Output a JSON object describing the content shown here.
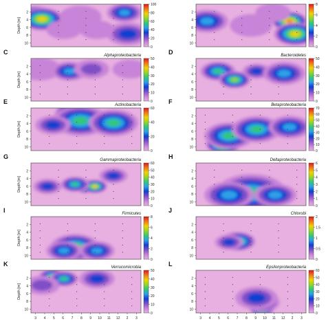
{
  "chart_data": [
    {
      "type": "heatmap",
      "letter": "",
      "title": "",
      "ylabel": "Depth [m]",
      "colorbar_ticks": [
        0,
        20,
        40,
        60,
        80,
        100
      ],
      "hotspots": [
        {
          "x": 0.05,
          "y": 0.25,
          "v": 0.95,
          "r": 0.09
        },
        {
          "x": 0.1,
          "y": 0.35,
          "v": 0.75,
          "r": 0.12
        },
        {
          "x": 0.3,
          "y": 0.6,
          "v": 0.05,
          "r": 0.1
        },
        {
          "x": 0.45,
          "y": 0.3,
          "v": 0.1,
          "r": 0.12
        },
        {
          "x": 0.6,
          "y": 0.6,
          "v": 0.15,
          "r": 0.1
        },
        {
          "x": 0.85,
          "y": 0.2,
          "v": 0.45,
          "r": 0.1
        },
        {
          "x": 0.88,
          "y": 0.7,
          "v": 0.35,
          "r": 0.12
        }
      ]
    },
    {
      "type": "heatmap",
      "letter": "",
      "title": "",
      "ylabel": "",
      "colorbar_ticks": [
        0,
        2,
        4,
        6,
        8
      ],
      "hotspots": [
        {
          "x": 0.85,
          "y": 0.4,
          "v": 0.9,
          "r": 0.1
        },
        {
          "x": 0.9,
          "y": 0.7,
          "v": 0.75,
          "r": 0.12
        },
        {
          "x": 0.1,
          "y": 0.4,
          "v": 0.45,
          "r": 0.12
        },
        {
          "x": 0.5,
          "y": 0.5,
          "v": 0.15,
          "r": 0.12
        },
        {
          "x": 0.7,
          "y": 0.2,
          "v": 0.15,
          "r": 0.1
        }
      ]
    },
    {
      "type": "heatmap",
      "letter": "C",
      "title": "Alphaproteobacteria",
      "ylabel": "Depth [m]",
      "colorbar_ticks": [
        0,
        10,
        20,
        30,
        40,
        50
      ],
      "hotspots": [
        {
          "x": 0.08,
          "y": 0.25,
          "v": 0.15,
          "r": 0.12
        },
        {
          "x": 0.35,
          "y": 0.3,
          "v": 0.4,
          "r": 0.1
        },
        {
          "x": 0.55,
          "y": 0.25,
          "v": 0.25,
          "r": 0.1
        },
        {
          "x": 0.9,
          "y": 0.25,
          "v": 0.1,
          "r": 0.1
        }
      ]
    },
    {
      "type": "heatmap",
      "letter": "D",
      "title": "Bacteroidetes",
      "ylabel": "",
      "colorbar_ticks": [
        0,
        10,
        20,
        30,
        40,
        50
      ],
      "hotspots": [
        {
          "x": 0.2,
          "y": 0.3,
          "v": 0.5,
          "r": 0.1
        },
        {
          "x": 0.35,
          "y": 0.5,
          "v": 0.7,
          "r": 0.09
        },
        {
          "x": 0.55,
          "y": 0.3,
          "v": 0.35,
          "r": 0.08
        },
        {
          "x": 0.8,
          "y": 0.35,
          "v": 0.45,
          "r": 0.12
        }
      ]
    },
    {
      "type": "heatmap",
      "letter": "E",
      "title": "Actinobacteria",
      "ylabel": "Depth [m]",
      "colorbar_ticks": [
        0,
        20,
        40,
        60
      ],
      "hotspots": [
        {
          "x": 0.38,
          "y": 0.12,
          "v": 0.95,
          "r": 0.1
        },
        {
          "x": 0.45,
          "y": 0.3,
          "v": 0.6,
          "r": 0.16
        },
        {
          "x": 0.75,
          "y": 0.35,
          "v": 0.5,
          "r": 0.14
        },
        {
          "x": 0.2,
          "y": 0.4,
          "v": 0.3,
          "r": 0.1
        }
      ]
    },
    {
      "type": "heatmap",
      "letter": "F",
      "title": "Betaproteobacteria",
      "ylabel": "",
      "colorbar_ticks": [
        0,
        10,
        20,
        30,
        40,
        50,
        60,
        70
      ],
      "hotspots": [
        {
          "x": 0.25,
          "y": 0.85,
          "v": 0.95,
          "r": 0.1
        },
        {
          "x": 0.3,
          "y": 0.65,
          "v": 0.6,
          "r": 0.14
        },
        {
          "x": 0.55,
          "y": 0.5,
          "v": 0.55,
          "r": 0.14
        },
        {
          "x": 0.85,
          "y": 0.45,
          "v": 0.45,
          "r": 0.12
        }
      ]
    },
    {
      "type": "heatmap",
      "letter": "G",
      "title": "Gammaproteobacteria",
      "ylabel": "Depth [m]",
      "colorbar_ticks": [
        0,
        10,
        20,
        30,
        40,
        50,
        60
      ],
      "hotspots": [
        {
          "x": 0.5,
          "y": 0.55,
          "v": 0.95,
          "r": 0.07
        },
        {
          "x": 0.58,
          "y": 0.55,
          "v": 0.8,
          "r": 0.07
        },
        {
          "x": 0.4,
          "y": 0.5,
          "v": 0.5,
          "r": 0.08
        },
        {
          "x": 0.15,
          "y": 0.55,
          "v": 0.3,
          "r": 0.08
        },
        {
          "x": 0.75,
          "y": 0.3,
          "v": 0.35,
          "r": 0.08
        }
      ]
    },
    {
      "type": "heatmap",
      "letter": "H",
      "title": "Deltaproteobacteria",
      "ylabel": "",
      "colorbar_ticks": [
        0,
        1,
        2,
        3,
        4,
        5,
        6
      ],
      "hotspots": [
        {
          "x": 0.55,
          "y": 0.85,
          "v": 0.95,
          "r": 0.09
        },
        {
          "x": 0.5,
          "y": 0.7,
          "v": 0.6,
          "r": 0.2
        },
        {
          "x": 0.3,
          "y": 0.75,
          "v": 0.4,
          "r": 0.14
        },
        {
          "x": 0.72,
          "y": 0.75,
          "v": 0.4,
          "r": 0.12
        }
      ]
    },
    {
      "type": "heatmap",
      "letter": "I",
      "title": "Firmicutes",
      "ylabel": "Depth [m]",
      "colorbar_ticks": [
        0,
        2,
        4,
        6,
        8
      ],
      "hotspots": [
        {
          "x": 0.45,
          "y": 0.75,
          "v": 0.95,
          "r": 0.08
        },
        {
          "x": 0.4,
          "y": 0.72,
          "v": 0.7,
          "r": 0.14
        },
        {
          "x": 0.3,
          "y": 0.8,
          "v": 0.4,
          "r": 0.1
        },
        {
          "x": 0.6,
          "y": 0.8,
          "v": 0.4,
          "r": 0.1
        }
      ]
    },
    {
      "type": "heatmap",
      "letter": "J",
      "title": "Chlorobi",
      "ylabel": "",
      "colorbar_ticks": [
        0,
        0.5,
        1,
        1.5,
        2
      ],
      "hotspots": [
        {
          "x": 0.37,
          "y": 0.55,
          "v": 0.95,
          "r": 0.07
        },
        {
          "x": 0.38,
          "y": 0.58,
          "v": 0.65,
          "r": 0.1
        },
        {
          "x": 0.3,
          "y": 0.6,
          "v": 0.3,
          "r": 0.08
        }
      ]
    },
    {
      "type": "heatmap",
      "letter": "K",
      "title": "Verrucomicrobia",
      "ylabel": "Depth [m]",
      "colorbar_ticks": [
        0,
        10,
        20,
        30,
        40,
        50
      ],
      "hotspots": [
        {
          "x": 0.2,
          "y": 0.15,
          "v": 0.65,
          "r": 0.08
        },
        {
          "x": 0.3,
          "y": 0.2,
          "v": 0.5,
          "r": 0.08
        },
        {
          "x": 0.6,
          "y": 0.2,
          "v": 0.3,
          "r": 0.1
        },
        {
          "x": 0.1,
          "y": 0.35,
          "v": 0.25,
          "r": 0.1
        }
      ]
    },
    {
      "type": "heatmap",
      "letter": "L",
      "title": "Epsilonproteobacteria",
      "ylabel": "",
      "colorbar_ticks": [
        0,
        10,
        20,
        30,
        40,
        50,
        60
      ],
      "hotspots": [
        {
          "x": 0.6,
          "y": 0.9,
          "v": 0.95,
          "r": 0.07
        },
        {
          "x": 0.6,
          "y": 0.75,
          "v": 0.6,
          "r": 0.1
        },
        {
          "x": 0.55,
          "y": 0.65,
          "v": 0.3,
          "r": 0.12
        }
      ]
    }
  ],
  "axes": {
    "y_ticks": [
      2,
      4,
      6,
      8,
      10
    ],
    "x_ticks": [
      "3",
      "4",
      "5",
      "6",
      "7",
      "8",
      "9",
      "10",
      "11",
      "12",
      "2",
      "3"
    ]
  },
  "colors": {
    "scale": [
      "#e8b0e0",
      "#c884d8",
      "#8050c8",
      "#1040d0",
      "#2ea0e8",
      "#30c878",
      "#9ad42a",
      "#f0d400",
      "#f07820",
      "#e01818"
    ]
  }
}
